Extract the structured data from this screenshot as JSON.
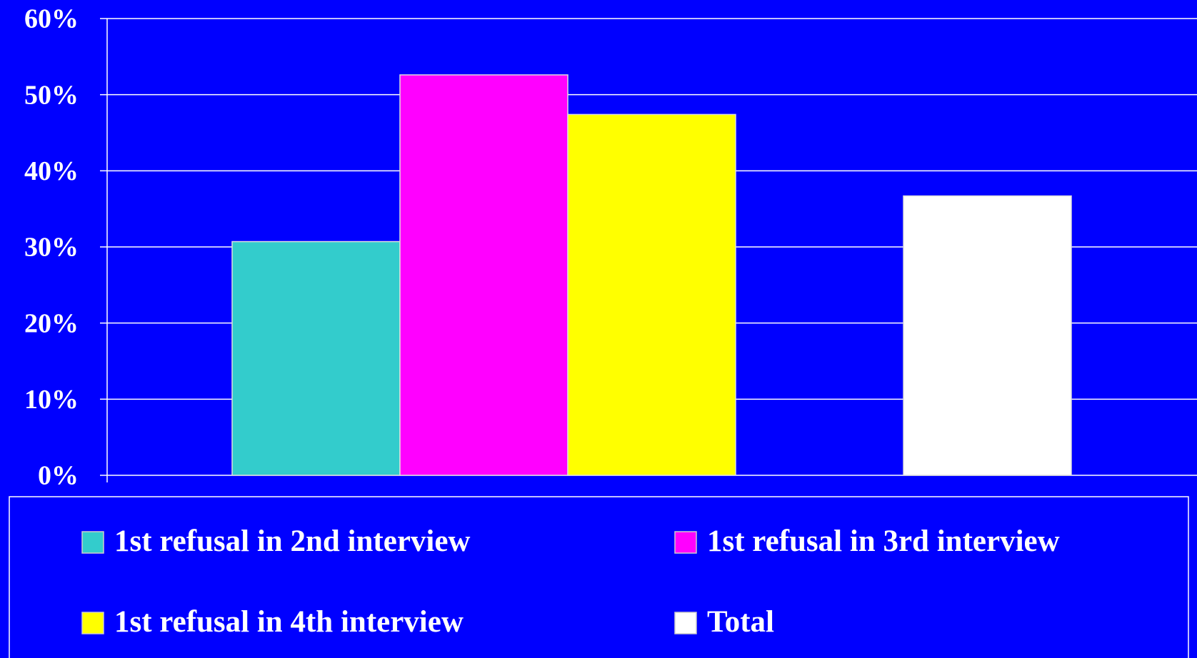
{
  "chart_data": {
    "type": "bar",
    "categories": [
      null
    ],
    "series": [
      {
        "name": "1st refusal in 2nd interview",
        "color": "#33cccc",
        "values": [
          30.7
        ]
      },
      {
        "name": "1st refusal in 3rd interview",
        "color": "#ff00ff",
        "values": [
          52.6
        ]
      },
      {
        "name": "1st refusal in 4th interview",
        "color": "#ffff00",
        "values": [
          47.4
        ]
      },
      {
        "name": "Total",
        "color": "#ffffff",
        "values": [
          36.7
        ]
      }
    ],
    "ylim": [
      0,
      60
    ],
    "yticks": [
      {
        "value": 0,
        "label": "0%"
      },
      {
        "value": 10,
        "label": "10%"
      },
      {
        "value": 20,
        "label": "20%"
      },
      {
        "value": 30,
        "label": "30%"
      },
      {
        "value": 40,
        "label": "40%"
      },
      {
        "value": 50,
        "label": "50%"
      },
      {
        "value": 60,
        "label": "60%"
      }
    ],
    "grid": true,
    "legend": "bottom"
  }
}
